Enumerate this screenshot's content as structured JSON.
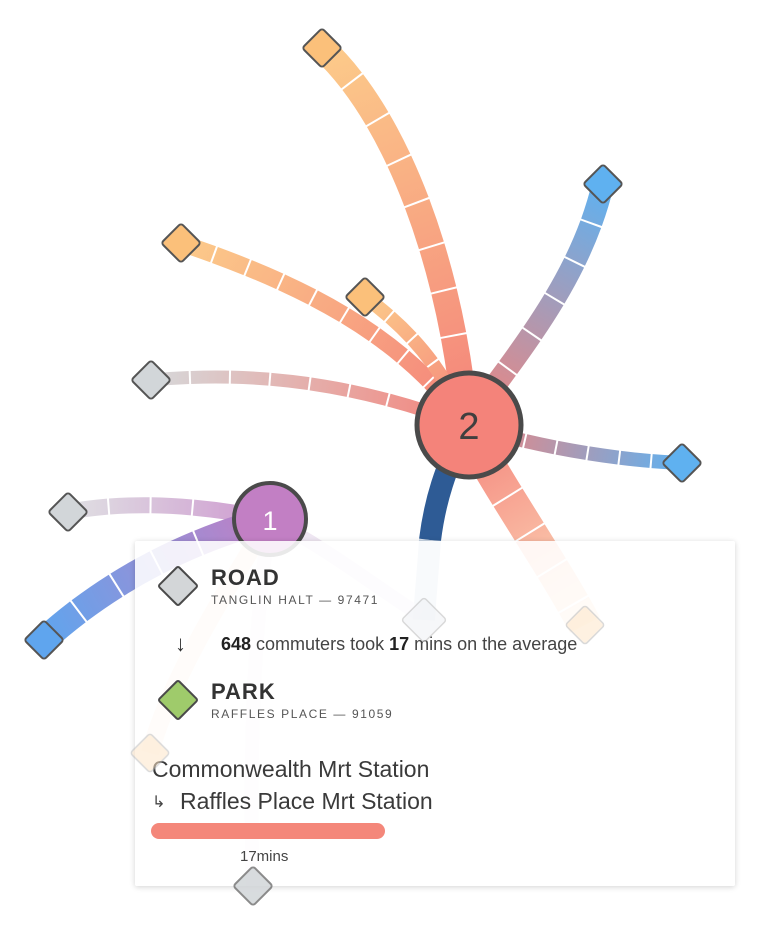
{
  "hubs": [
    {
      "id": "hub-1",
      "label": "1",
      "color": "#c27fc4"
    },
    {
      "id": "hub-2",
      "label": "2",
      "color": "#f4837a"
    }
  ],
  "tooltip": {
    "origin": {
      "type": "ROAD",
      "sub": "TANGLIN HALT — 97471",
      "color": "#d3d6d8"
    },
    "middle": {
      "count": "648",
      "mid1": " commuters took ",
      "mins": "17",
      "mid2": " mins on the average"
    },
    "destination": {
      "type": "PARK",
      "sub": "RAFFLES PLACE — 91059",
      "color": "#9fcb6b"
    },
    "route_from": "Commonwealth Mrt Station",
    "route_to": "Raffles Place Mrt Station",
    "duration_label": "17mins",
    "duration_color": "#f4877a"
  },
  "colors": {
    "orange": "#fbc07a",
    "salmon": "#f4837a",
    "blue": "#5fb1f0",
    "grey": "#d2d6d9",
    "purple": "#c27fc4",
    "navy": "#2e5b95"
  }
}
